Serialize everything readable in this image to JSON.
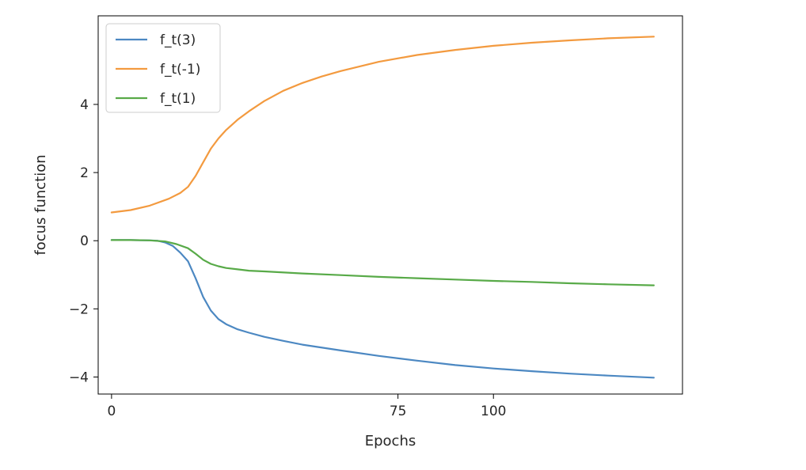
{
  "chart_data": {
    "type": "line",
    "title": "",
    "xlabel": "Epochs",
    "ylabel": "focus function",
    "xlim": [
      -3.5,
      149.5
    ],
    "ylim": [
      -4.5,
      6.6
    ],
    "xticks": [
      0,
      75,
      100
    ],
    "yticks": [
      -4,
      -2,
      0,
      2,
      4
    ],
    "ytick_labels": [
      "−4",
      "−2",
      "0",
      "2",
      "4"
    ],
    "grid": false,
    "legend": "top-left",
    "series": [
      {
        "name": "f_t(3)",
        "color": "#4c88c2",
        "x": [
          0,
          5,
          10,
          12,
          14,
          16,
          18,
          20,
          22,
          24,
          26,
          28,
          30,
          33,
          36,
          40,
          45,
          50,
          60,
          70,
          80,
          90,
          100,
          110,
          120,
          130,
          142
        ],
        "y": [
          0.02,
          0.02,
          0.01,
          0.0,
          -0.05,
          -0.15,
          -0.35,
          -0.6,
          -1.1,
          -1.65,
          -2.05,
          -2.3,
          -2.45,
          -2.6,
          -2.7,
          -2.82,
          -2.94,
          -3.05,
          -3.22,
          -3.38,
          -3.52,
          -3.65,
          -3.75,
          -3.83,
          -3.9,
          -3.96,
          -4.02
        ]
      },
      {
        "name": "f_t(-1)",
        "color": "#f39a3f",
        "x": [
          0,
          5,
          10,
          15,
          18,
          20,
          22,
          24,
          26,
          28,
          30,
          33,
          36,
          40,
          45,
          50,
          55,
          60,
          70,
          80,
          90,
          100,
          110,
          120,
          130,
          142
        ],
        "y": [
          0.83,
          0.9,
          1.03,
          1.23,
          1.4,
          1.58,
          1.9,
          2.3,
          2.7,
          3.0,
          3.25,
          3.55,
          3.8,
          4.1,
          4.4,
          4.63,
          4.82,
          4.98,
          5.25,
          5.45,
          5.6,
          5.72,
          5.81,
          5.88,
          5.94,
          5.99
        ]
      },
      {
        "name": "f_t(1)",
        "color": "#58aa48",
        "x": [
          0,
          5,
          10,
          14,
          17,
          20,
          22,
          24,
          26,
          28,
          30,
          33,
          36,
          40,
          50,
          60,
          70,
          80,
          90,
          100,
          110,
          120,
          130,
          142
        ],
        "y": [
          0.02,
          0.02,
          0.01,
          -0.02,
          -0.1,
          -0.22,
          -0.38,
          -0.56,
          -0.68,
          -0.75,
          -0.8,
          -0.84,
          -0.88,
          -0.9,
          -0.96,
          -1.01,
          -1.06,
          -1.1,
          -1.14,
          -1.18,
          -1.21,
          -1.25,
          -1.28,
          -1.31
        ]
      }
    ]
  }
}
